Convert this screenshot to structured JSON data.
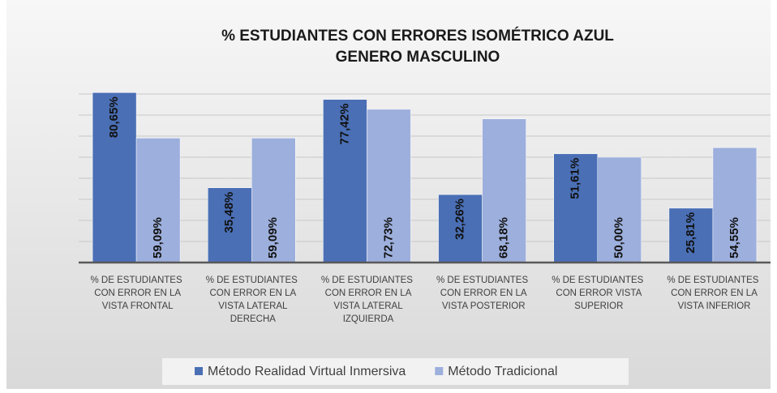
{
  "chart_data": {
    "type": "bar",
    "title": "% ESTUDIANTES CON ERRORES ISOMÉTRICO AZUL",
    "subtitle": "GENERO MASCULINO",
    "categories": [
      "% DE ESTUDIANTES CON ERROR EN LA VISTA FRONTAL",
      "% DE ESTUDIANTES CON ERROR EN LA VISTA LATERAL DERECHA",
      "% DE ESTUDIANTES CON ERROR EN LA VISTA LATERAL IZQUIERDA",
      "% DE ESTUDIANTES CON ERROR EN LA VISTA POSTERIOR",
      "% DE ESTUDIANTES CON ERROR VISTA SUPERIOR",
      "% DE ESTUDIANTES CON ERROR EN LA VISTA INFERIOR"
    ],
    "series": [
      {
        "name": "Método Realidad Virtual Inmersiva",
        "color": "#4a6fb5",
        "values": [
          80.65,
          35.48,
          77.42,
          32.26,
          51.61,
          25.81
        ],
        "value_labels": [
          "80,65%",
          "35,48%",
          "77,42%",
          "32,26%",
          "51,61%",
          "25,81%"
        ]
      },
      {
        "name": "Método Tradicional",
        "color": "#9dafdc",
        "values": [
          59.09,
          59.09,
          72.73,
          68.18,
          50.0,
          54.55
        ],
        "value_labels": [
          "59,09%",
          "59,09%",
          "72,73%",
          "68,18%",
          "50,00%",
          "54,55%"
        ]
      }
    ],
    "ylim": [
      0,
      90
    ],
    "yticks": [
      0,
      10,
      20,
      30,
      40,
      50,
      60,
      70,
      80
    ],
    "grid": true,
    "legend": "bottom"
  }
}
